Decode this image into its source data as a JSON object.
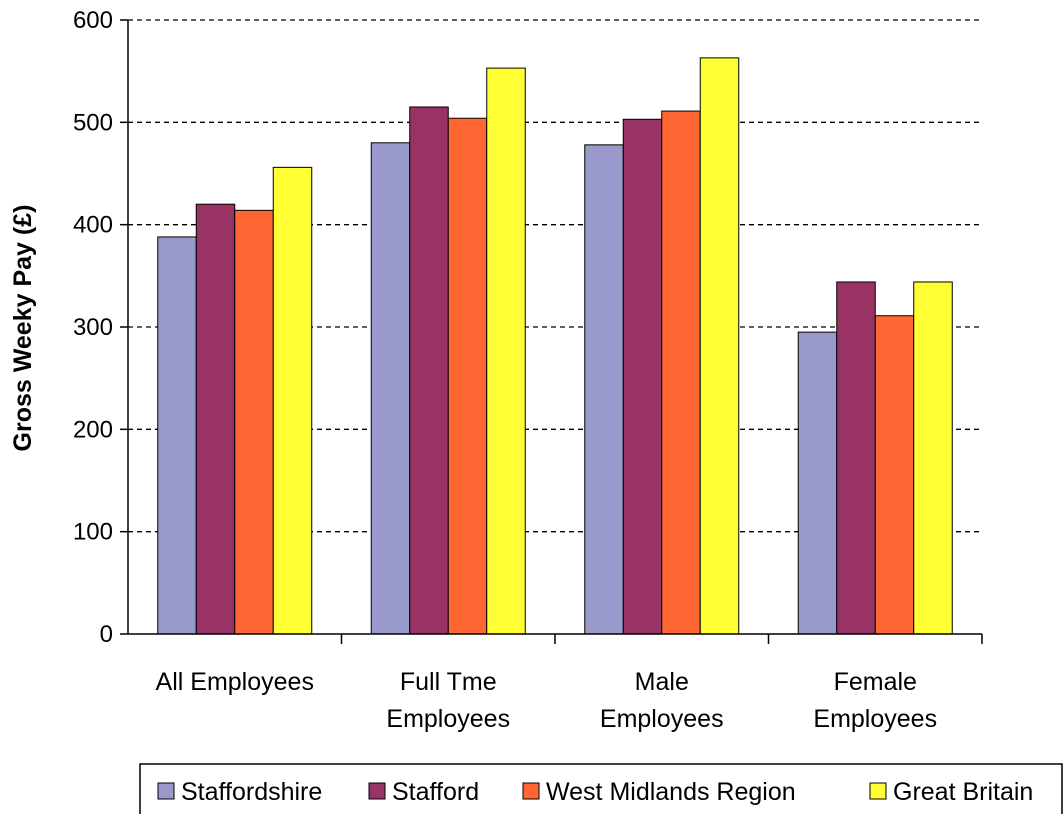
{
  "chart_data": {
    "type": "bar",
    "ylabel": "Gross Weeky Pay (£)",
    "ylim": [
      0,
      600
    ],
    "yticks": [
      0,
      100,
      200,
      300,
      400,
      500,
      600
    ],
    "grid": true,
    "legend_position": "bottom",
    "categories": [
      [
        "All Employees"
      ],
      [
        "Full Tme",
        "Employees"
      ],
      [
        "Male",
        "Employees"
      ],
      [
        "Female",
        "Employees"
      ]
    ],
    "series": [
      {
        "name": "Staffordshire",
        "color": "#9999cc",
        "values": [
          388,
          480,
          478,
          295
        ]
      },
      {
        "name": "Stafford",
        "color": "#993366",
        "values": [
          420,
          515,
          503,
          344
        ]
      },
      {
        "name": "West Midlands Region",
        "color": "#ff6633",
        "values": [
          414,
          504,
          511,
          311
        ]
      },
      {
        "name": "Great Britain",
        "color": "#ffff33",
        "values": [
          456,
          553,
          563,
          344
        ]
      }
    ]
  }
}
